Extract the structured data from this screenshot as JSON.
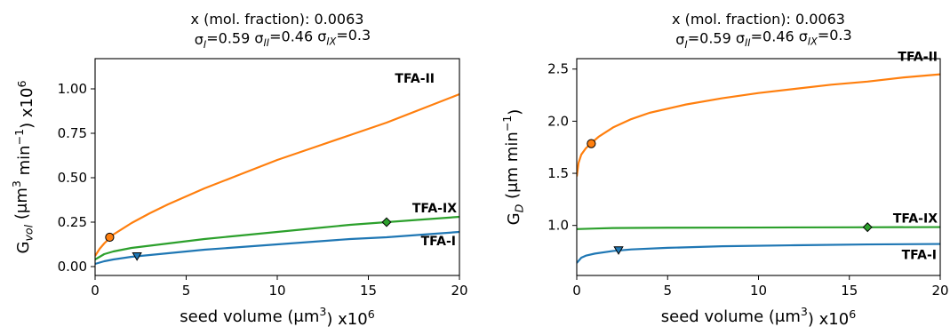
{
  "chart_data": [
    {
      "type": "line",
      "title_line1": "x (mol. fraction): 0.0063",
      "title_line2_parts": [
        {
          "text": "σ"
        },
        {
          "text": "I",
          "sub": true
        },
        {
          "text": "=0.59 σ"
        },
        {
          "text": "II",
          "sub": true
        },
        {
          "text": "=0.46 σ"
        },
        {
          "text": "IX",
          "sub": true
        },
        {
          "text": "=0.3"
        }
      ],
      "xlabel_parts": [
        {
          "text": "seed volume (μm"
        },
        {
          "text": "3",
          "sup": true
        },
        {
          "text": ") x10"
        },
        {
          "text": "6",
          "sup": true
        }
      ],
      "ylabel_parts": [
        {
          "text": "G"
        },
        {
          "text": "vol",
          "sub": true
        },
        {
          "text": " (μm"
        },
        {
          "text": "3",
          "sup": true
        },
        {
          "text": " min"
        },
        {
          "text": "−1",
          "sup": true
        },
        {
          "text": ") x10"
        },
        {
          "text": "6",
          "sup": true
        }
      ],
      "xlim": [
        0,
        20
      ],
      "ylim": [
        -0.05,
        1.17
      ],
      "xticks": [
        0,
        5,
        10,
        15,
        20
      ],
      "xtick_labels": [
        "0",
        "5",
        "10",
        "15",
        "20"
      ],
      "yticks": [
        0.0,
        0.25,
        0.5,
        0.75,
        1.0
      ],
      "ytick_labels": [
        "0.00",
        "0.25",
        "0.50",
        "0.75",
        "1.00"
      ],
      "grid": false,
      "series": [
        {
          "name": "TFA-II",
          "color": "#ff7f0e",
          "x": [
            0,
            0.25,
            0.5,
            1,
            2,
            3,
            4,
            6,
            8,
            10,
            12,
            14,
            16,
            18,
            20
          ],
          "y": [
            0.06,
            0.1,
            0.13,
            0.18,
            0.245,
            0.3,
            0.35,
            0.44,
            0.52,
            0.6,
            0.67,
            0.74,
            0.81,
            0.89,
            0.97
          ],
          "marker": {
            "shape": "circle",
            "x": 0.8,
            "y": 0.165,
            "color": "#ff7f0e"
          }
        },
        {
          "name": "TFA-IX",
          "color": "#2ca02c",
          "x": [
            0,
            0.5,
            1,
            2,
            4,
            6,
            8,
            10,
            12,
            14,
            16,
            18,
            20
          ],
          "y": [
            0.04,
            0.07,
            0.085,
            0.105,
            0.13,
            0.155,
            0.175,
            0.195,
            0.215,
            0.235,
            0.25,
            0.265,
            0.28
          ],
          "marker": {
            "shape": "diamond",
            "x": 16,
            "y": 0.25,
            "color": "#2ca02c"
          }
        },
        {
          "name": "TFA-I",
          "color": "#1f77b4",
          "x": [
            0,
            0.5,
            1,
            2,
            4,
            6,
            8,
            10,
            12,
            14,
            16,
            18,
            20
          ],
          "y": [
            0.015,
            0.03,
            0.04,
            0.055,
            0.075,
            0.095,
            0.11,
            0.125,
            0.14,
            0.155,
            0.165,
            0.18,
            0.195
          ],
          "marker": {
            "shape": "triangle-down",
            "x": 2.3,
            "y": 0.058,
            "color": "#1f77b4"
          }
        }
      ],
      "series_labels": [
        {
          "series": "TFA-II",
          "text": "TFA-II"
        },
        {
          "series": "TFA-IX",
          "text": "TFA-IX"
        },
        {
          "series": "TFA-I",
          "text": "TFA-I"
        }
      ]
    },
    {
      "type": "line",
      "title_line1": "x (mol. fraction): 0.0063",
      "title_line2_parts": [
        {
          "text": "σ"
        },
        {
          "text": "I",
          "sub": true
        },
        {
          "text": "=0.59 σ"
        },
        {
          "text": "II",
          "sub": true
        },
        {
          "text": "=0.46 σ"
        },
        {
          "text": "IX",
          "sub": true
        },
        {
          "text": "=0.3"
        }
      ],
      "xlabel_parts": [
        {
          "text": "seed volume (μm"
        },
        {
          "text": "3",
          "sup": true
        },
        {
          "text": ") x10"
        },
        {
          "text": "6",
          "sup": true
        }
      ],
      "ylabel_parts": [
        {
          "text": "G"
        },
        {
          "text": "D",
          "sub": true
        },
        {
          "text": " (μm min"
        },
        {
          "text": "−1",
          "sup": true
        },
        {
          "text": ")"
        }
      ],
      "xlim": [
        0,
        20
      ],
      "ylim": [
        0.52,
        2.6
      ],
      "xticks": [
        0,
        5,
        10,
        15,
        20
      ],
      "xtick_labels": [
        "0",
        "5",
        "10",
        "15",
        "20"
      ],
      "yticks": [
        1.0,
        1.5,
        2.0,
        2.5
      ],
      "ytick_labels": [
        "1.0",
        "1.5",
        "2.0",
        "2.5"
      ],
      "grid": false,
      "series": [
        {
          "name": "TFA-II",
          "color": "#ff7f0e",
          "x": [
            0,
            0.1,
            0.25,
            0.5,
            0.8,
            1.2,
            2,
            3,
            4,
            6,
            8,
            10,
            12,
            14,
            16,
            18,
            20
          ],
          "y": [
            1.47,
            1.6,
            1.68,
            1.74,
            1.79,
            1.85,
            1.94,
            2.02,
            2.08,
            2.16,
            2.22,
            2.27,
            2.31,
            2.35,
            2.38,
            2.42,
            2.45
          ],
          "marker": {
            "shape": "circle",
            "x": 0.8,
            "y": 1.785,
            "color": "#ff7f0e"
          }
        },
        {
          "name": "TFA-IX",
          "color": "#2ca02c",
          "x": [
            0,
            1,
            2,
            5,
            10,
            15,
            20
          ],
          "y": [
            0.965,
            0.97,
            0.975,
            0.978,
            0.98,
            0.982,
            0.984
          ],
          "marker": {
            "shape": "diamond",
            "x": 16,
            "y": 0.983,
            "color": "#2ca02c"
          }
        },
        {
          "name": "TFA-I",
          "color": "#1f77b4",
          "x": [
            0,
            0.1,
            0.25,
            0.5,
            1,
            2,
            3,
            5,
            8,
            12,
            16,
            20
          ],
          "y": [
            0.64,
            0.66,
            0.69,
            0.71,
            0.73,
            0.755,
            0.77,
            0.785,
            0.8,
            0.81,
            0.818,
            0.822
          ],
          "marker": {
            "shape": "triangle-down",
            "x": 2.3,
            "y": 0.762,
            "color": "#1f77b4"
          }
        }
      ],
      "series_labels": [
        {
          "series": "TFA-II",
          "text": "TFA-II"
        },
        {
          "series": "TFA-IX",
          "text": "TFA-IX"
        },
        {
          "series": "TFA-I",
          "text": "TFA-I"
        }
      ]
    }
  ]
}
